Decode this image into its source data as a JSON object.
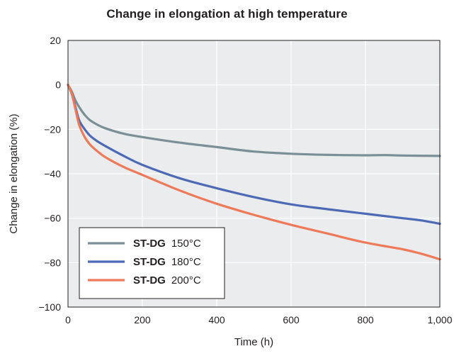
{
  "chart_data": {
    "type": "line",
    "title": "Change in elongation at high temperature",
    "xlabel": "Time (h)",
    "ylabel": "Change in elongation (%)",
    "xlim": [
      0,
      1000
    ],
    "ylim": [
      -100,
      20
    ],
    "xticks": [
      0,
      200,
      400,
      600,
      800,
      1000
    ],
    "xtick_labels": [
      "0",
      "200",
      "400",
      "600",
      "800",
      "1,000"
    ],
    "yticks": [
      20,
      0,
      -20,
      -40,
      -60,
      -80,
      -100
    ],
    "ytick_labels": [
      "20",
      "0",
      "−20",
      "−40",
      "−60",
      "−80",
      "−100"
    ],
    "grid": true,
    "plot_background": "#ebeced",
    "legend_position": "bottom-left",
    "series": [
      {
        "product": "ST-DG",
        "temperature": "150°C",
        "color": "#7b8f96",
        "x": [
          0,
          10,
          20,
          30,
          45,
          60,
          80,
          100,
          150,
          200,
          300,
          400,
          500,
          600,
          700,
          800,
          850,
          900,
          1000
        ],
        "y": [
          0,
          -3,
          -7,
          -10,
          -13.5,
          -16,
          -18,
          -19.5,
          -22,
          -23.5,
          -26,
          -28,
          -30,
          -31,
          -31.5,
          -31.7,
          -31.6,
          -31.8,
          -32
        ]
      },
      {
        "product": "ST-DG",
        "temperature": "180°C",
        "color": "#4d6ab5",
        "x": [
          0,
          10,
          20,
          30,
          45,
          60,
          80,
          100,
          150,
          200,
          300,
          400,
          500,
          600,
          700,
          800,
          900,
          950,
          1000
        ],
        "y": [
          0,
          -4,
          -10,
          -16,
          -20,
          -23,
          -25.5,
          -27.5,
          -32,
          -36,
          -42,
          -46.5,
          -50.5,
          -53.8,
          -56,
          -58,
          -60,
          -61,
          -62.5
        ]
      },
      {
        "product": "ST-DG",
        "temperature": "200°C",
        "color": "#ee7a5a",
        "x": [
          0,
          10,
          20,
          30,
          45,
          60,
          80,
          100,
          150,
          200,
          300,
          400,
          500,
          600,
          700,
          800,
          900,
          950,
          1000
        ],
        "y": [
          0,
          -4,
          -11,
          -18,
          -23.5,
          -27,
          -30,
          -32.5,
          -37,
          -40.5,
          -47.5,
          -53.5,
          -58.5,
          -63,
          -67,
          -71,
          -74,
          -76,
          -78.5
        ]
      }
    ]
  }
}
